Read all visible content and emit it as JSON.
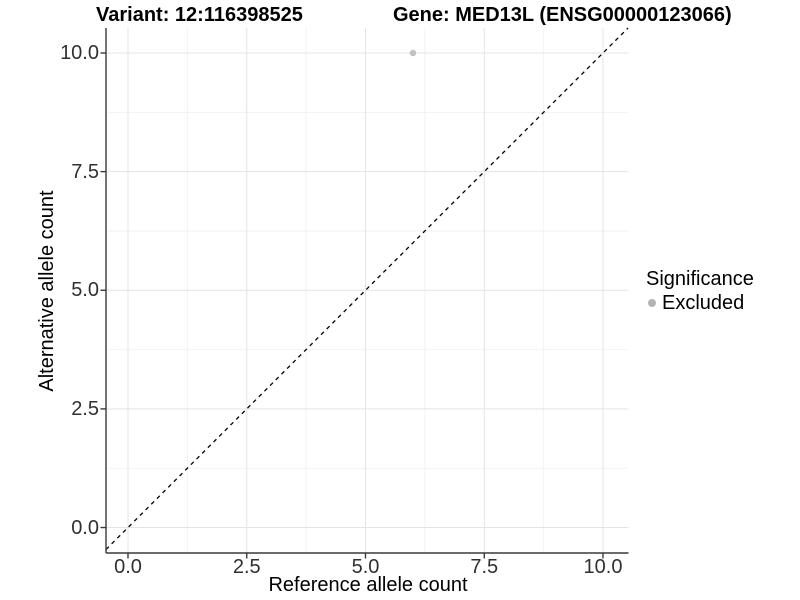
{
  "colors": {
    "background": "#ffffff",
    "grid_major": "#e4e4e4",
    "grid_minor": "#f2f2f2",
    "axis_line": "#3a3a3a",
    "tick_label": "#303030",
    "point_gray": "#c2c2c2",
    "legend_dot_gray": "#b3b3b3",
    "reference_line": "#000000"
  },
  "chart_data": {
    "type": "scatter",
    "title_left": "Variant: 12:116398525",
    "title_right": "Gene: MED13L (ENSG00000123066)",
    "xlabel": "Reference allele count",
    "ylabel": "Alternative allele count",
    "x_ticks": {
      "values": [
        0,
        2.5,
        5,
        7.5,
        10
      ],
      "labels": [
        "0.0",
        "2.5",
        "5.0",
        "7.5",
        "10.0"
      ]
    },
    "y_ticks": {
      "values": [
        0,
        2.5,
        5,
        7.5,
        10
      ],
      "labels": [
        "0.0",
        "2.5",
        "5.0",
        "7.5",
        "10.0"
      ]
    },
    "x_minor_ticks": [
      1.25,
      3.75,
      6.25,
      8.75
    ],
    "y_minor_ticks": [
      1.25,
      3.75,
      6.25,
      8.75
    ],
    "xlim": [
      -0.463,
      10.537
    ],
    "ylim": [
      -0.537,
      10.527
    ],
    "grid": true,
    "points": [
      {
        "x": 6,
        "y": 10,
        "series": "Excluded",
        "color": "#c2c2c2"
      }
    ],
    "reference_line": {
      "type": "identity y=x",
      "style": "dashed",
      "color": "#000000"
    },
    "legend": {
      "title": "Significance",
      "position": "right",
      "items": [
        {
          "label": "Excluded",
          "color": "#b3b3b3",
          "marker": "circle"
        }
      ]
    }
  }
}
